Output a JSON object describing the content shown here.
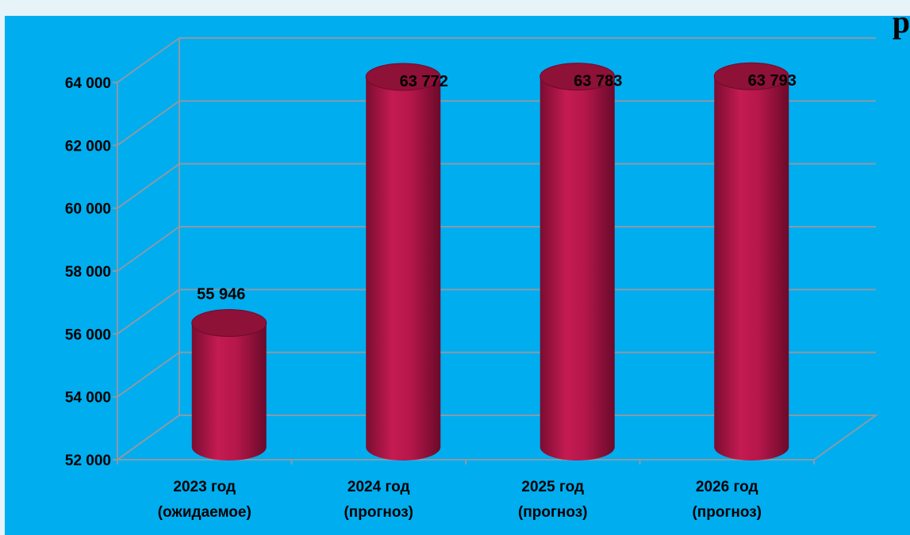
{
  "corner_text": "р",
  "colors": {
    "background": "#00adef",
    "bar_body": "#b5174b",
    "bar_dark": "#6e0b2c",
    "bar_top": "#8e1138",
    "grid": "#8a9aa6"
  },
  "chart_data": {
    "type": "bar",
    "style": "3d-cylinder",
    "categories": [
      [
        "2023 год",
        "(ожидаемое)"
      ],
      [
        "2024 год",
        "(прогноз)"
      ],
      [
        "2025 год",
        "(прогноз)"
      ],
      [
        "2026 год",
        "(прогноз)"
      ]
    ],
    "values": [
      55946,
      63772,
      63783,
      63793
    ],
    "value_labels": [
      "55 946",
      "63 772",
      "63 783",
      "63 793"
    ],
    "ylim": [
      52000,
      64000
    ],
    "yticks": [
      52000,
      54000,
      56000,
      58000,
      60000,
      62000,
      64000
    ],
    "ytick_labels": [
      "52 000",
      "54 000",
      "56 000",
      "58 000",
      "60 000",
      "62 000",
      "64 000"
    ],
    "title": "",
    "xlabel": "",
    "ylabel": "",
    "grid": true,
    "legend": "none"
  }
}
